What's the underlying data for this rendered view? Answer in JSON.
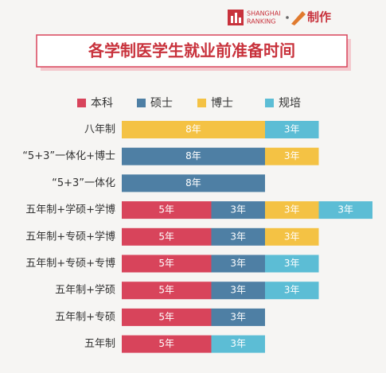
{
  "header": {
    "brand_top": "SHANGHAI",
    "brand_bottom": "RANKING",
    "made_by": "制作"
  },
  "chart_data": {
    "type": "stacked-bar-horizontal",
    "title": "各学制医学生就业前准备时间",
    "categories": [
      "八年制",
      "“5+3”一体化+博士",
      "“5+3”一体化",
      "五年制+学硕+学博",
      "五年制+专硕+学博",
      "五年制+专硕+专博",
      "五年制+学硕",
      "五年制+专硕",
      "五年制"
    ],
    "series": [
      {
        "name": "本科",
        "color": "#d8445b",
        "values": [
          null,
          null,
          null,
          5,
          5,
          5,
          5,
          5,
          5
        ],
        "value_labels": [
          null,
          null,
          null,
          "5年",
          "5年",
          "5年",
          "5年",
          "5年",
          "5年"
        ]
      },
      {
        "name": "硕士",
        "color": "#4e7fa4",
        "values": [
          null,
          8,
          8,
          3,
          3,
          3,
          3,
          3,
          null
        ],
        "value_labels": [
          null,
          "8年",
          "8年",
          "3年",
          "3年",
          "3年",
          "3年",
          "3年",
          null
        ]
      },
      {
        "name": "博士",
        "color": "#f4c244",
        "values": [
          8,
          3,
          null,
          3,
          3,
          null,
          null,
          null,
          null
        ],
        "value_labels": [
          "8年",
          "3年",
          null,
          "3年",
          "3年",
          null,
          null,
          null,
          null
        ]
      },
      {
        "name": "规培",
        "color": "#5cbdd5",
        "values": [
          3,
          null,
          null,
          3,
          null,
          3,
          3,
          null,
          3
        ],
        "value_labels": [
          "3年",
          null,
          null,
          "3年",
          null,
          "3年",
          "3年",
          null,
          "3年"
        ]
      }
    ]
  }
}
